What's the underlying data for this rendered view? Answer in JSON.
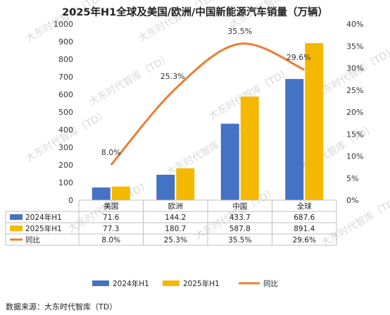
{
  "chart_data": {
    "type": "bar",
    "title": "2025年H1全球及美国/欧洲/中国新能源汽车销量（万辆）",
    "categories": [
      "美国",
      "欧洲",
      "中国",
      "全球"
    ],
    "series": [
      {
        "name": "2024年H1",
        "values": [
          71.6,
          144.2,
          433.7,
          687.6
        ],
        "value_labels": [
          "71.6",
          "144.2",
          "433.7",
          "687.6"
        ],
        "color": "#4472C4",
        "kind": "bar"
      },
      {
        "name": "2025年H1",
        "values": [
          77.3,
          180.7,
          587.8,
          891.4
        ],
        "value_labels": [
          "77.3",
          "180.7",
          "587.8",
          "891.4"
        ],
        "color": "#F5B800",
        "kind": "bar"
      },
      {
        "name": "同比",
        "values": [
          8.0,
          25.3,
          35.5,
          29.6
        ],
        "value_labels": [
          "8.0%",
          "25.3%",
          "35.5%",
          "29.6%"
        ],
        "color": "#ED7D31",
        "kind": "line",
        "axis": "right"
      }
    ],
    "ylim_left": [
      0,
      1000
    ],
    "yticks_left": [
      "0",
      "100",
      "200",
      "300",
      "400",
      "500",
      "600",
      "700",
      "800",
      "900",
      "1000"
    ],
    "ylim_right": [
      0,
      40
    ],
    "yticks_right": [
      "0%",
      "5%",
      "10%",
      "15%",
      "20%",
      "25%",
      "30%",
      "35%",
      "40%"
    ],
    "grid": false,
    "legend_placement": "bottom",
    "data_table": true
  },
  "watermark": "大东时代智库（TD）",
  "source_note": "数据来源：大东时代智库（TD）"
}
